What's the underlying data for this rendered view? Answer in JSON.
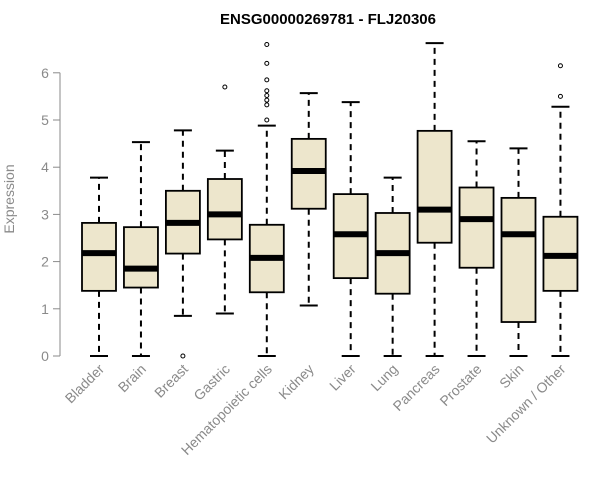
{
  "chart_data": {
    "type": "box",
    "title": "ENSG00000269781 - FLJ20306",
    "xlabel": "",
    "ylabel": "Expression",
    "ylim": [
      0,
      6.6
    ],
    "yticks": [
      0,
      1,
      2,
      3,
      4,
      5,
      6
    ],
    "box_fill": "#ede6cc",
    "categories": [
      "Bladder",
      "Brain",
      "Breast",
      "Gastric",
      "Hematopoietic cells",
      "Kidney",
      "Liver",
      "Lung",
      "Pancreas",
      "Prostate",
      "Skin",
      "Unknown / Other"
    ],
    "boxes": [
      {
        "whisker_low": 0.0,
        "q1": 1.38,
        "median": 2.18,
        "q3": 2.82,
        "whisker_high": 3.78,
        "outliers": []
      },
      {
        "whisker_low": 0.0,
        "q1": 1.45,
        "median": 1.85,
        "q3": 2.73,
        "whisker_high": 4.53,
        "outliers": []
      },
      {
        "whisker_low": 0.85,
        "q1": 2.17,
        "median": 2.82,
        "q3": 3.5,
        "whisker_high": 4.78,
        "outliers": [
          0.0
        ]
      },
      {
        "whisker_low": 0.9,
        "q1": 2.47,
        "median": 3.0,
        "q3": 3.75,
        "whisker_high": 4.35,
        "outliers": [
          5.7
        ]
      },
      {
        "whisker_low": 0.0,
        "q1": 1.35,
        "median": 2.08,
        "q3": 2.78,
        "whisker_high": 4.88,
        "outliers": [
          5.0,
          5.32,
          5.42,
          5.52,
          5.62,
          5.85,
          6.2,
          6.6
        ]
      },
      {
        "whisker_low": 1.07,
        "q1": 3.12,
        "median": 3.92,
        "q3": 4.6,
        "whisker_high": 5.57,
        "outliers": []
      },
      {
        "whisker_low": 0.0,
        "q1": 1.65,
        "median": 2.58,
        "q3": 3.43,
        "whisker_high": 5.38,
        "outliers": []
      },
      {
        "whisker_low": 0.0,
        "q1": 1.32,
        "median": 2.18,
        "q3": 3.03,
        "whisker_high": 3.78,
        "outliers": []
      },
      {
        "whisker_low": 0.0,
        "q1": 2.4,
        "median": 3.1,
        "q3": 4.77,
        "whisker_high": 6.63,
        "outliers": []
      },
      {
        "whisker_low": 0.0,
        "q1": 1.87,
        "median": 2.9,
        "q3": 3.57,
        "whisker_high": 4.55,
        "outliers": []
      },
      {
        "whisker_low": 0.0,
        "q1": 0.72,
        "median": 2.58,
        "q3": 3.35,
        "whisker_high": 4.4,
        "outliers": []
      },
      {
        "whisker_low": 0.0,
        "q1": 1.38,
        "median": 2.12,
        "q3": 2.95,
        "whisker_high": 5.28,
        "outliers": [
          5.5,
          6.15
        ]
      }
    ]
  }
}
